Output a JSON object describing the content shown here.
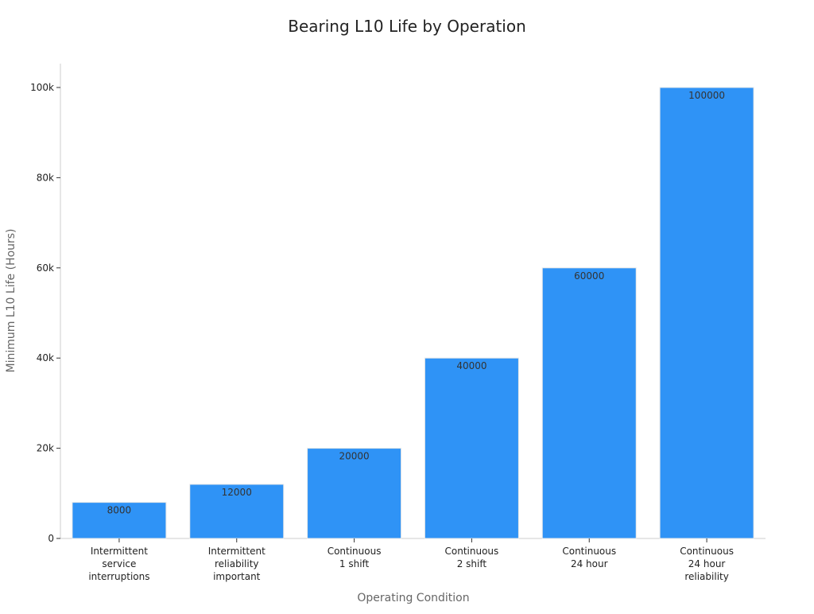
{
  "chart_data": {
    "type": "bar",
    "title": "Bearing L10 Life by Operation",
    "xlabel": "Operating Condition",
    "ylabel": "Minimum L10 Life (Hours)",
    "categories": [
      [
        "Intermittent",
        "service",
        "interruptions"
      ],
      [
        "Intermittent",
        "reliability",
        "important"
      ],
      [
        "Continuous",
        "1 shift"
      ],
      [
        "Continuous",
        "2 shift"
      ],
      [
        "Continuous",
        "24 hour"
      ],
      [
        "Continuous",
        "24 hour",
        "reliability"
      ]
    ],
    "values": [
      8000,
      12000,
      20000,
      40000,
      60000,
      100000
    ],
    "data_labels": [
      "8000",
      "12000",
      "20000",
      "40000",
      "60000",
      "100000"
    ],
    "ylim": [
      0,
      105000
    ],
    "yticks": [
      0,
      20000,
      40000,
      60000,
      80000,
      100000
    ],
    "ytick_labels": [
      "0",
      "20k",
      "40k",
      "60k",
      "80k",
      "100k"
    ],
    "grid": false,
    "legend": "none",
    "colors": {
      "bar": "#2f93f6",
      "bar_edge": "#e8e8e8",
      "axis": "#cccccc",
      "tick_text": "#222222",
      "label_text": "#666666",
      "title_text": "#222222",
      "data_label_text": "#333333"
    }
  }
}
